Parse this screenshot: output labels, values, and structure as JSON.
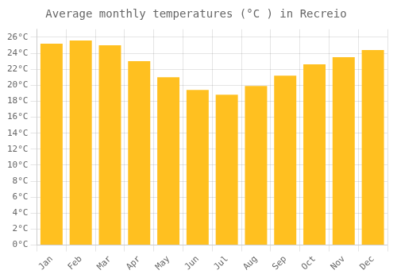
{
  "chart_data": {
    "type": "bar",
    "title": "Average monthly temperatures (°C ) in Recreio",
    "categories": [
      "Jan",
      "Feb",
      "Mar",
      "Apr",
      "May",
      "Jun",
      "Jul",
      "Aug",
      "Sep",
      "Oct",
      "Nov",
      "Dec"
    ],
    "values": [
      25.2,
      25.6,
      25.0,
      23.0,
      21.0,
      19.4,
      18.8,
      19.9,
      21.2,
      22.6,
      23.5,
      24.4
    ],
    "color": "#FFC020",
    "ylim": [
      0,
      27
    ],
    "yticks": [
      {
        "value": 0,
        "label": "0°C"
      },
      {
        "value": 2,
        "label": "2°C"
      },
      {
        "value": 4,
        "label": "4°C"
      },
      {
        "value": 6,
        "label": "6°C"
      },
      {
        "value": 8,
        "label": "8°C"
      },
      {
        "value": 10,
        "label": "10°C"
      },
      {
        "value": 12,
        "label": "12°C"
      },
      {
        "value": 14,
        "label": "14°C"
      },
      {
        "value": 16,
        "label": "16°C"
      },
      {
        "value": 18,
        "label": "18°C"
      },
      {
        "value": 20,
        "label": "20°C"
      },
      {
        "value": 22,
        "label": "22°C"
      },
      {
        "value": 24,
        "label": "24°C"
      },
      {
        "value": 26,
        "label": "26°C"
      }
    ],
    "grid": true
  }
}
